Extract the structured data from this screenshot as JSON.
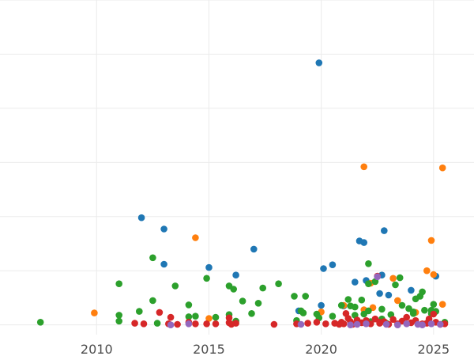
{
  "chart_data": {
    "type": "scatter",
    "title": "",
    "xlabel": "",
    "ylabel": "",
    "xlim": [
      2005.7,
      2026.8
    ],
    "ylim": [
      -0.18,
      6.0
    ],
    "xticks": [
      2010,
      2015,
      2020,
      2025
    ],
    "xtick_labels": [
      "2010",
      "2015",
      "2020",
      "2025"
    ],
    "yticks_gridlines": [
      0,
      1,
      2,
      3,
      4,
      5,
      6
    ],
    "grid": true,
    "legend": "none",
    "series": [
      {
        "color": "#1f77b4",
        "points": [
          [
            2019.9,
            4.84
          ],
          [
            2012.0,
            1.98
          ],
          [
            2013.0,
            1.77
          ],
          [
            2013.0,
            1.12
          ],
          [
            2015.0,
            1.06
          ],
          [
            2016.2,
            0.92
          ],
          [
            2017.0,
            1.4
          ],
          [
            2020.1,
            1.04
          ],
          [
            2020.5,
            1.11
          ],
          [
            2021.5,
            0.79
          ],
          [
            2021.7,
            1.55
          ],
          [
            2021.9,
            1.52
          ],
          [
            2022.8,
            1.74
          ],
          [
            2022.7,
            0.92
          ],
          [
            2023.0,
            0.55
          ],
          [
            2022.6,
            0.58
          ],
          [
            2024.0,
            0.64
          ],
          [
            2025.1,
            0.9
          ],
          [
            2019.0,
            0.26
          ],
          [
            2020.0,
            0.36
          ],
          [
            2021.0,
            0.35
          ],
          [
            2022.0,
            0.82
          ]
        ]
      },
      {
        "color": "#ff7f0e",
        "points": [
          [
            2009.9,
            0.22
          ],
          [
            2014.4,
            1.61
          ],
          [
            2015.0,
            0.12
          ],
          [
            2020.0,
            0.24
          ],
          [
            2021.9,
            2.92
          ],
          [
            2025.4,
            2.9
          ],
          [
            2024.9,
            1.56
          ],
          [
            2024.7,
            1.0
          ],
          [
            2025.0,
            0.93
          ],
          [
            2023.2,
            0.86
          ],
          [
            2022.2,
            0.77
          ],
          [
            2021.0,
            0.36
          ],
          [
            2022.3,
            0.32
          ],
          [
            2023.4,
            0.45
          ],
          [
            2025.4,
            0.38
          ],
          [
            2024.2,
            0.23
          ],
          [
            2021.9,
            0.28
          ]
        ]
      },
      {
        "color": "#2ca02c",
        "points": [
          [
            2007.5,
            0.05
          ],
          [
            2011.0,
            0.76
          ],
          [
            2011.0,
            0.18
          ],
          [
            2011.0,
            0.07
          ],
          [
            2011.9,
            0.25
          ],
          [
            2012.5,
            1.24
          ],
          [
            2012.5,
            0.45
          ],
          [
            2012.7,
            0.03
          ],
          [
            2013.5,
            0.72
          ],
          [
            2014.1,
            0.37
          ],
          [
            2014.1,
            0.15
          ],
          [
            2014.4,
            0.16
          ],
          [
            2014.9,
            0.86
          ],
          [
            2015.3,
            0.14
          ],
          [
            2015.9,
            0.72
          ],
          [
            2016.1,
            0.66
          ],
          [
            2015.9,
            0.19
          ],
          [
            2016.2,
            0.07
          ],
          [
            2016.5,
            0.44
          ],
          [
            2016.9,
            0.21
          ],
          [
            2017.2,
            0.4
          ],
          [
            2017.4,
            0.68
          ],
          [
            2018.1,
            0.76
          ],
          [
            2018.8,
            0.53
          ],
          [
            2019.3,
            0.53
          ],
          [
            2019.2,
            0.22
          ],
          [
            2019.1,
            0.26
          ],
          [
            2018.9,
            0.08
          ],
          [
            2019.8,
            0.2
          ],
          [
            2020.5,
            0.16
          ],
          [
            2019.9,
            0.13
          ],
          [
            2020.9,
            0.36
          ],
          [
            2021.2,
            0.47
          ],
          [
            2021.3,
            0.35
          ],
          [
            2021.5,
            0.33
          ],
          [
            2021.8,
            0.46
          ],
          [
            2021.9,
            0.2
          ],
          [
            2021.5,
            0.18
          ],
          [
            2022.1,
            1.13
          ],
          [
            2022.1,
            0.76
          ],
          [
            2022.1,
            0.26
          ],
          [
            2022.4,
            0.8
          ],
          [
            2022.7,
            0.29
          ],
          [
            2022.7,
            0.11
          ],
          [
            2023.1,
            0.19
          ],
          [
            2023.3,
            0.74
          ],
          [
            2023.5,
            0.87
          ],
          [
            2023.6,
            0.36
          ],
          [
            2024.1,
            0.24
          ],
          [
            2024.1,
            0.21
          ],
          [
            2024.2,
            0.48
          ],
          [
            2024.4,
            0.53
          ],
          [
            2024.5,
            0.61
          ],
          [
            2024.6,
            0.27
          ],
          [
            2024.9,
            0.21
          ],
          [
            2024.9,
            0.27
          ],
          [
            2025.0,
            0.38
          ],
          [
            2025.1,
            0.25
          ],
          [
            2023.9,
            0.3
          ],
          [
            2025.5,
            0.05
          ],
          [
            2022.2,
            0.06
          ],
          [
            2022.9,
            0.03
          ]
        ]
      },
      {
        "color": "#d62728",
        "points": [
          [
            2011.7,
            0.03
          ],
          [
            2012.1,
            0.02
          ],
          [
            2012.8,
            0.23
          ],
          [
            2013.3,
            0.14
          ],
          [
            2013.2,
            0.02
          ],
          [
            2013.6,
            0.01
          ],
          [
            2014.1,
            0.05
          ],
          [
            2014.4,
            0.02
          ],
          [
            2014.9,
            0.02
          ],
          [
            2015.3,
            0.02
          ],
          [
            2015.9,
            0.04
          ],
          [
            2015.9,
            0.13
          ],
          [
            2016.2,
            0.03
          ],
          [
            2016.0,
            0.01
          ],
          [
            2017.9,
            0.01
          ],
          [
            2018.9,
            0.02
          ],
          [
            2019.4,
            0.03
          ],
          [
            2019.8,
            0.05
          ],
          [
            2020.2,
            0.02
          ],
          [
            2020.6,
            0.03
          ],
          [
            2020.8,
            0.01
          ],
          [
            2020.9,
            0.05
          ],
          [
            2021.0,
            0.02
          ],
          [
            2021.1,
            0.21
          ],
          [
            2021.2,
            0.12
          ],
          [
            2021.3,
            0.06
          ],
          [
            2021.4,
            0.01
          ],
          [
            2021.6,
            0.09
          ],
          [
            2021.8,
            0.04
          ],
          [
            2022.0,
            0.08
          ],
          [
            2022.2,
            0.02
          ],
          [
            2022.4,
            0.11
          ],
          [
            2022.6,
            0.05
          ],
          [
            2022.6,
            0.03
          ],
          [
            2022.8,
            0.06
          ],
          [
            2023.0,
            0.01
          ],
          [
            2023.2,
            0.1
          ],
          [
            2023.4,
            0.02
          ],
          [
            2023.6,
            0.07
          ],
          [
            2023.8,
            0.14
          ],
          [
            2024.0,
            0.04
          ],
          [
            2024.2,
            0.08
          ],
          [
            2024.5,
            0.02
          ],
          [
            2024.7,
            0.03
          ],
          [
            2024.8,
            0.11
          ],
          [
            2025.0,
            0.2
          ],
          [
            2025.1,
            0.05
          ],
          [
            2025.3,
            0.01
          ],
          [
            2025.5,
            0.02
          ],
          [
            2022.5,
            0.9
          ]
        ]
      },
      {
        "color": "#9467bd",
        "points": [
          [
            2013.3,
            0.0
          ],
          [
            2014.1,
            0.02
          ],
          [
            2019.1,
            0.01
          ],
          [
            2021.3,
            0.0
          ],
          [
            2021.6,
            0.01
          ],
          [
            2022.0,
            0.02
          ],
          [
            2022.5,
            0.89
          ],
          [
            2022.9,
            0.01
          ],
          [
            2023.4,
            0.0
          ],
          [
            2023.8,
            0.02
          ],
          [
            2024.3,
            0.01
          ],
          [
            2024.5,
            0.0
          ],
          [
            2024.9,
            0.02
          ],
          [
            2025.3,
            0.01
          ]
        ]
      }
    ]
  }
}
